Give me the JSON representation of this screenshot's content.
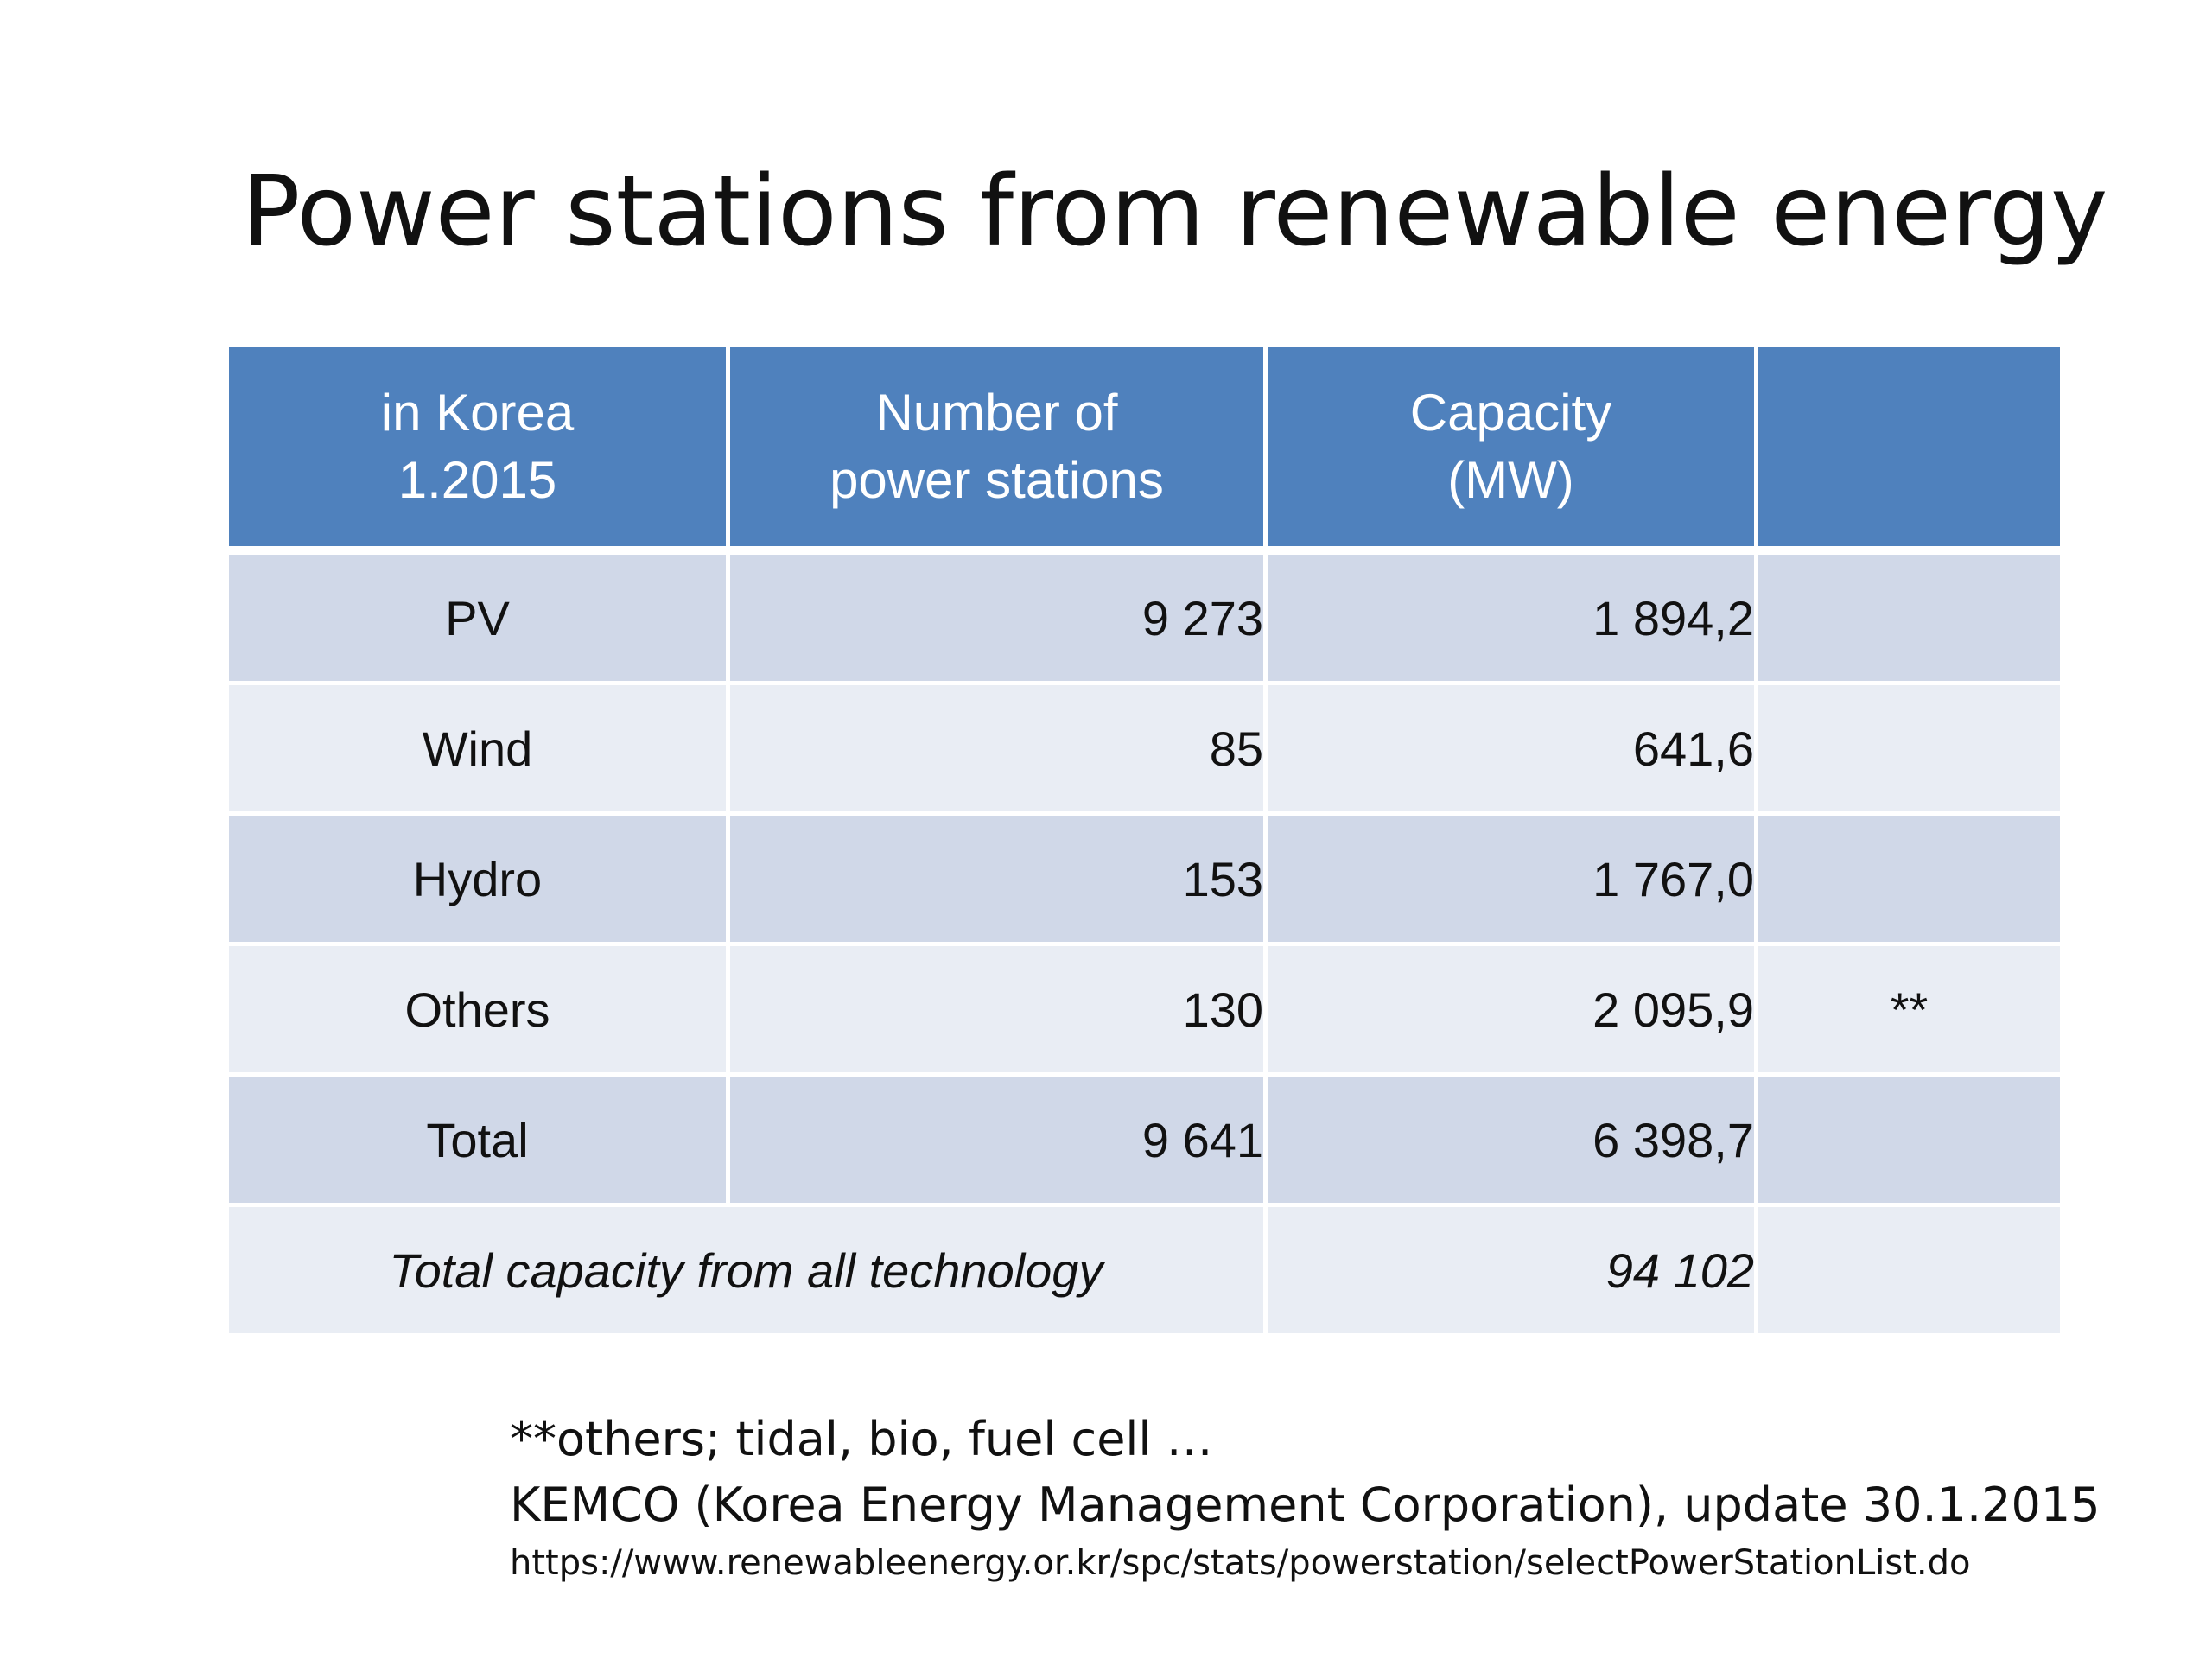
{
  "slide": {
    "title": "Power stations from renewable energy"
  },
  "table": {
    "headers": [
      {
        "line1": "in Korea",
        "line2": "1.2015"
      },
      {
        "line1": "Number of",
        "line2": "power stations"
      },
      {
        "line1": "Capacity",
        "line2": "(MW)"
      },
      {
        "line1": "",
        "line2": ""
      }
    ],
    "rows": [
      {
        "label": "PV",
        "stations": "9 273",
        "capacity": "1 894,2",
        "note": ""
      },
      {
        "label": "Wind",
        "stations": "85",
        "capacity": "641,6",
        "note": ""
      },
      {
        "label": "Hydro",
        "stations": "153",
        "capacity": "1 767,0",
        "note": ""
      },
      {
        "label": "Others",
        "stations": "130",
        "capacity": "2 095,9",
        "note": "**"
      },
      {
        "label": "Total",
        "stations": "9 641",
        "capacity": "6 398,7",
        "note": ""
      }
    ],
    "summary": {
      "label": "Total capacity from all technology",
      "value": "94 102",
      "note": ""
    }
  },
  "footnotes": {
    "others_note": "**others; tidal, bio, fuel cell …",
    "source": "KEMCO (Korea Energy Management Corporation), update 30.1.2015",
    "url": "https://www.renewableenergy.or.kr/spc/stats/powerstation/selectPowerStationList.do"
  }
}
